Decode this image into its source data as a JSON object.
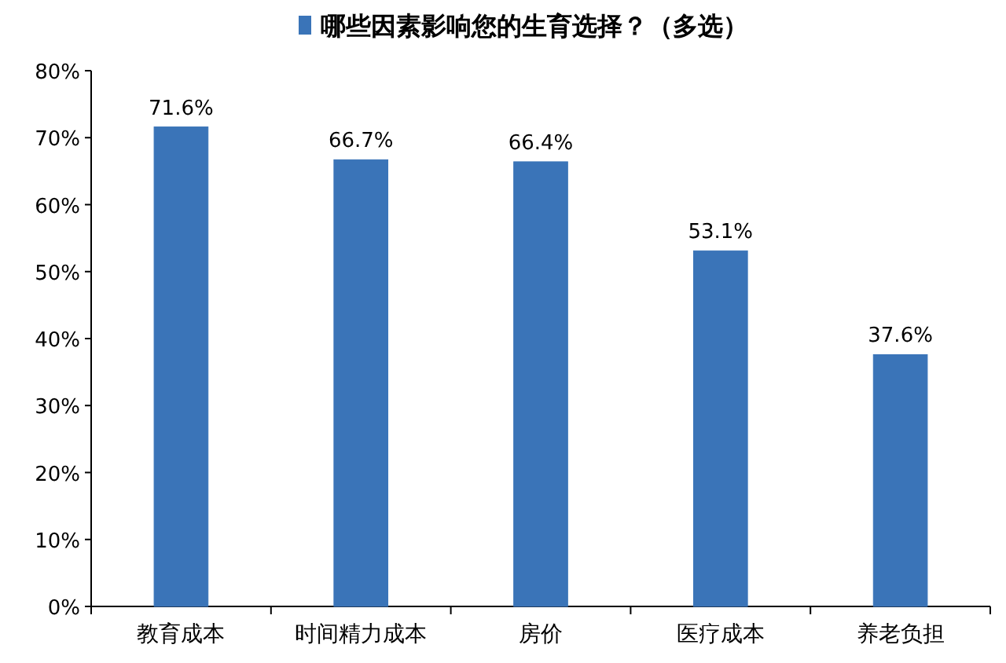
{
  "chart_data": {
    "type": "bar",
    "categories": [
      "教育成本",
      "时间精力成本",
      "房价",
      "医疗成本",
      "养老负担"
    ],
    "series": [
      {
        "name": "哪些因素影响您的生育选择？（多选）",
        "color": "#3a74b8",
        "values": [
          71.6,
          66.7,
          66.4,
          53.1,
          37.6
        ],
        "value_labels": [
          "71.6%",
          "66.7%",
          "66.4%",
          "53.1%",
          "37.6%"
        ]
      }
    ],
    "ylim": [
      0,
      80
    ],
    "yticks": [
      {
        "value": 0,
        "label": "0%"
      },
      {
        "value": 10,
        "label": "10%"
      },
      {
        "value": 20,
        "label": "20%"
      },
      {
        "value": 30,
        "label": "30%"
      },
      {
        "value": 40,
        "label": "40%"
      },
      {
        "value": 50,
        "label": "50%"
      },
      {
        "value": 60,
        "label": "60%"
      },
      {
        "value": 70,
        "label": "70%"
      },
      {
        "value": 80,
        "label": "80%"
      }
    ],
    "legend": "top"
  }
}
